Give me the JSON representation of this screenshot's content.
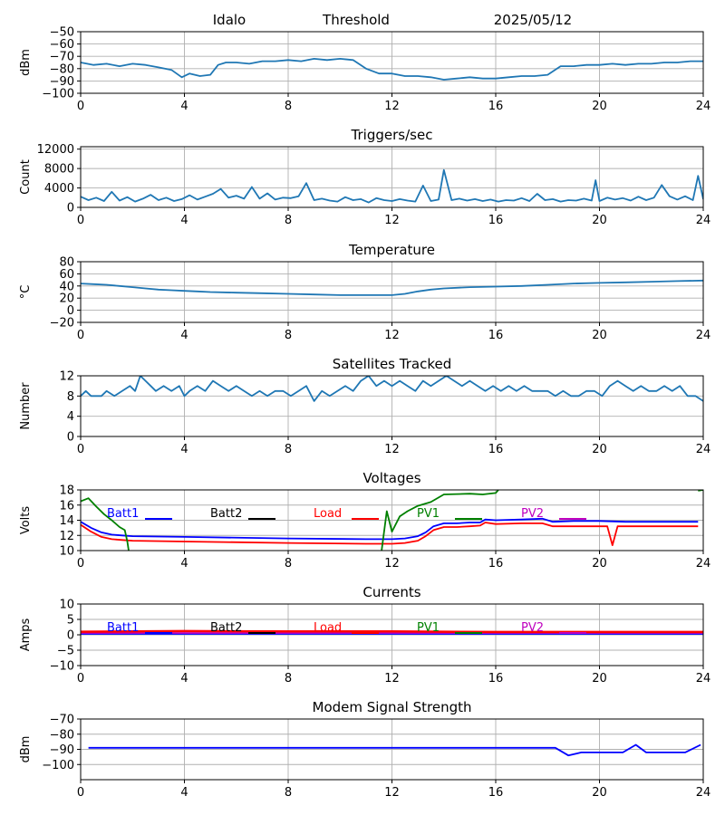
{
  "header": {
    "station": "Idalo",
    "mode": "Threshold",
    "date": "2025/05/12"
  },
  "colors": {
    "series_default": "#1f77b4",
    "batt1": "#0000ff",
    "batt2": "#000000",
    "load": "#ff0000",
    "pv1": "#008000",
    "pv2": "#bf00bf",
    "grid": "#b0b0b0"
  },
  "chart_data": [
    {
      "id": "threshold",
      "type": "line",
      "title": "",
      "ylabel": "dBm",
      "xlim": [
        0,
        24
      ],
      "ylim": [
        -100,
        -50
      ],
      "xticks": [
        0,
        4,
        8,
        12,
        16,
        20,
        24
      ],
      "yticks": [
        -100,
        -90,
        -80,
        -70,
        -60,
        -50
      ],
      "grid": true,
      "series": [
        {
          "color": "#1f77b4",
          "x": [
            0,
            0.5,
            1,
            1.5,
            2,
            2.5,
            3,
            3.5,
            3.9,
            4.2,
            4.6,
            5,
            5.3,
            5.6,
            6,
            6.5,
            7,
            7.5,
            8,
            8.5,
            9,
            9.5,
            10,
            10.5,
            11,
            11.5,
            12,
            12.5,
            13,
            13.5,
            14,
            14.5,
            15,
            15.5,
            16,
            16.5,
            17,
            17.5,
            18,
            18.5,
            19,
            19.5,
            20,
            20.5,
            21,
            21.5,
            22,
            22.5,
            23,
            23.5,
            24
          ],
          "y": [
            -75,
            -77,
            -76,
            -78,
            -76,
            -77,
            -79,
            -81,
            -87,
            -84,
            -86,
            -85,
            -77,
            -75,
            -75,
            -76,
            -74,
            -74,
            -73,
            -74,
            -72,
            -73,
            -72,
            -73,
            -80,
            -84,
            -84,
            -86,
            -86,
            -87,
            -89,
            -88,
            -87,
            -88,
            -88,
            -87,
            -86,
            -86,
            -85,
            -78,
            -78,
            -77,
            -77,
            -76,
            -77,
            -76,
            -76,
            -75,
            -75,
            -74,
            -74
          ]
        }
      ]
    },
    {
      "id": "triggers",
      "type": "line",
      "title": "Triggers/sec",
      "ylabel": "Count",
      "xlim": [
        0,
        24
      ],
      "ylim": [
        0,
        12500
      ],
      "xticks": [
        0,
        4,
        8,
        12,
        16,
        20,
        24
      ],
      "yticks": [
        0,
        4000,
        8000,
        12000
      ],
      "grid": true,
      "series": [
        {
          "color": "#1f77b4",
          "x": [
            0,
            0.3,
            0.6,
            0.9,
            1.2,
            1.5,
            1.8,
            2.1,
            2.4,
            2.7,
            3,
            3.3,
            3.6,
            3.9,
            4.2,
            4.5,
            4.8,
            5.1,
            5.4,
            5.7,
            6,
            6.3,
            6.6,
            6.9,
            7.2,
            7.5,
            7.8,
            8.1,
            8.4,
            8.7,
            9,
            9.3,
            9.6,
            9.9,
            10.2,
            10.5,
            10.8,
            11.1,
            11.4,
            11.7,
            12,
            12.3,
            12.6,
            12.9,
            13.2,
            13.5,
            13.8,
            14,
            14.3,
            14.6,
            14.9,
            15.2,
            15.5,
            15.8,
            16.1,
            16.4,
            16.7,
            17,
            17.3,
            17.6,
            17.9,
            18.2,
            18.5,
            18.8,
            19.1,
            19.4,
            19.7,
            19.85,
            20,
            20.3,
            20.6,
            20.9,
            21.2,
            21.5,
            21.8,
            22.1,
            22.4,
            22.7,
            23,
            23.3,
            23.6,
            23.8,
            24
          ],
          "y": [
            2200,
            1500,
            2000,
            1300,
            3200,
            1400,
            2100,
            1200,
            1800,
            2600,
            1500,
            2000,
            1300,
            1700,
            2500,
            1600,
            2200,
            2800,
            3800,
            2000,
            2400,
            1800,
            4200,
            1800,
            2900,
            1600,
            2000,
            1900,
            2300,
            5000,
            1500,
            1800,
            1400,
            1200,
            2100,
            1500,
            1700,
            1000,
            1900,
            1500,
            1300,
            1700,
            1400,
            1200,
            4500,
            1300,
            1600,
            7700,
            1500,
            1800,
            1400,
            1700,
            1300,
            1600,
            1200,
            1500,
            1400,
            1900,
            1300,
            2800,
            1500,
            1700,
            1200,
            1500,
            1400,
            1800,
            1400,
            5600,
            1300,
            2000,
            1600,
            1900,
            1400,
            2200,
            1500,
            2000,
            4600,
            2300,
            1600,
            2300,
            1500,
            6500,
            1700
          ]
        }
      ]
    },
    {
      "id": "temperature",
      "type": "line",
      "title": "Temperature",
      "ylabel": "°C",
      "xlim": [
        0,
        24
      ],
      "ylim": [
        -20,
        80
      ],
      "xticks": [
        0,
        4,
        8,
        12,
        16,
        20,
        24
      ],
      "yticks": [
        -20,
        0,
        20,
        40,
        60,
        80
      ],
      "grid": true,
      "series": [
        {
          "color": "#1f77b4",
          "x": [
            0,
            0.5,
            1,
            1.5,
            2,
            2.5,
            3,
            3.5,
            4,
            4.5,
            5,
            6,
            7,
            8,
            9,
            10,
            11,
            12,
            12.5,
            13,
            13.5,
            14,
            15,
            16,
            17,
            18,
            19,
            20,
            21,
            22,
            23,
            24
          ],
          "y": [
            44,
            43,
            42,
            40,
            38,
            36,
            34,
            33,
            32,
            31,
            30,
            29,
            28,
            27,
            26,
            25,
            25,
            25,
            27,
            31,
            34,
            36,
            38,
            39,
            40,
            42,
            44,
            45,
            46,
            47,
            48,
            49
          ]
        }
      ]
    },
    {
      "id": "satellites",
      "type": "line",
      "title": "Satellites Tracked",
      "ylabel": "Number",
      "xlim": [
        0,
        24
      ],
      "ylim": [
        0,
        12
      ],
      "xticks": [
        0,
        4,
        8,
        12,
        16,
        20,
        24
      ],
      "yticks": [
        0,
        4,
        8,
        12
      ],
      "grid": true,
      "series": [
        {
          "color": "#1f77b4",
          "x": [
            0,
            0.2,
            0.4,
            0.6,
            0.8,
            1,
            1.3,
            1.6,
            1.9,
            2.1,
            2.3,
            2.5,
            2.7,
            2.9,
            3.2,
            3.5,
            3.8,
            4,
            4.2,
            4.5,
            4.8,
            5.1,
            5.4,
            5.7,
            6,
            6.3,
            6.6,
            6.9,
            7.2,
            7.5,
            7.8,
            8.1,
            8.4,
            8.7,
            9,
            9.3,
            9.6,
            9.9,
            10.2,
            10.5,
            10.8,
            11.1,
            11.4,
            11.7,
            12,
            12.3,
            12.6,
            12.9,
            13.2,
            13.5,
            13.8,
            14.1,
            14.4,
            14.7,
            15,
            15.3,
            15.6,
            15.9,
            16.2,
            16.5,
            16.8,
            17.1,
            17.4,
            17.7,
            18,
            18.3,
            18.6,
            18.9,
            19.2,
            19.5,
            19.8,
            20.1,
            20.4,
            20.7,
            21,
            21.3,
            21.6,
            21.9,
            22.2,
            22.5,
            22.8,
            23.1,
            23.4,
            23.7,
            24
          ],
          "y": [
            8,
            9,
            8,
            8,
            8,
            9,
            8,
            9,
            10,
            9,
            12,
            11,
            10,
            9,
            10,
            9,
            10,
            8,
            9,
            10,
            9,
            11,
            10,
            9,
            10,
            9,
            8,
            9,
            8,
            9,
            9,
            8,
            9,
            10,
            7,
            9,
            8,
            9,
            10,
            9,
            11,
            12,
            10,
            11,
            10,
            11,
            10,
            9,
            11,
            10,
            11,
            12,
            11,
            10,
            11,
            10,
            9,
            10,
            9,
            10,
            9,
            10,
            9,
            9,
            9,
            8,
            9,
            8,
            8,
            9,
            9,
            8,
            10,
            11,
            10,
            9,
            10,
            9,
            9,
            10,
            9,
            10,
            8,
            8,
            7
          ]
        }
      ]
    },
    {
      "id": "voltages",
      "type": "line",
      "title": "Voltages",
      "ylabel": "Volts",
      "xlim": [
        0,
        24
      ],
      "ylim": [
        10,
        18
      ],
      "xticks": [
        0,
        4,
        8,
        12,
        16,
        20,
        24
      ],
      "yticks": [
        10,
        12,
        14,
        16,
        18
      ],
      "grid": true,
      "legend": [
        "Batt1",
        "Batt2",
        "Load",
        "PV1",
        "PV2"
      ],
      "series": [
        {
          "name": "Batt1",
          "color": "#0000ff",
          "x": [
            0,
            0.4,
            0.8,
            1.2,
            1.6,
            2,
            4,
            8,
            11,
            12,
            12.5,
            13,
            13.3,
            13.6,
            14,
            14.5,
            15,
            15.4,
            15.6,
            16,
            17,
            17.8,
            18.2,
            19,
            20,
            21,
            22,
            23,
            23.8
          ],
          "y": [
            13.8,
            13.0,
            12.4,
            12.1,
            12.0,
            11.9,
            11.8,
            11.6,
            11.5,
            11.5,
            11.6,
            11.9,
            12.4,
            13.2,
            13.6,
            13.6,
            13.7,
            13.7,
            14.1,
            14.0,
            14.1,
            14.2,
            13.8,
            13.9,
            13.9,
            13.8,
            13.8,
            13.8,
            13.8
          ]
        },
        {
          "name": "Load",
          "color": "#ff0000",
          "x": [
            0,
            0.4,
            0.8,
            1.2,
            1.6,
            2,
            4,
            8,
            11,
            12,
            12.5,
            13,
            13.3,
            13.6,
            14,
            14.5,
            15,
            15.4,
            15.6,
            16,
            17,
            17.8,
            18.2,
            19,
            20,
            20.3,
            20.5,
            20.7,
            21,
            22,
            23,
            23.8
          ],
          "y": [
            13.4,
            12.5,
            11.8,
            11.5,
            11.4,
            11.3,
            11.2,
            11.0,
            10.9,
            10.9,
            11.0,
            11.3,
            11.9,
            12.7,
            13.1,
            13.1,
            13.2,
            13.3,
            13.7,
            13.5,
            13.6,
            13.6,
            13.2,
            13.2,
            13.2,
            13.2,
            10.7,
            13.2,
            13.2,
            13.2,
            13.2,
            13.2
          ]
        },
        {
          "name": "PV1",
          "color": "#008000",
          "x": [
            0,
            0.3,
            0.6,
            0.9,
            1.2,
            1.5,
            1.7,
            1.8,
            1.85
          ],
          "y": [
            16.5,
            16.9,
            15.8,
            14.8,
            14.0,
            13.1,
            12.7,
            11.2,
            10.0
          ]
        },
        {
          "name": "PV1",
          "color": "#008000",
          "x": [
            11.6,
            11.8,
            12.0,
            12.3,
            12.6,
            13,
            13.5,
            14,
            15,
            15.5,
            16,
            16.1
          ],
          "y": [
            10.0,
            15.2,
            12.5,
            14.5,
            15.2,
            15.9,
            16.4,
            17.4,
            17.5,
            17.4,
            17.6,
            18.0
          ]
        },
        {
          "name": "PV1",
          "color": "#008000",
          "x": [
            23.8,
            24
          ],
          "y": [
            17.9,
            18.0
          ]
        }
      ]
    },
    {
      "id": "currents",
      "type": "line",
      "title": "Currents",
      "ylabel": "Amps",
      "xlim": [
        0,
        24
      ],
      "ylim": [
        -10,
        10
      ],
      "xticks": [
        0,
        4,
        8,
        12,
        16,
        20,
        24
      ],
      "yticks": [
        -10,
        -5,
        0,
        5,
        10
      ],
      "grid": true,
      "legend": [
        "Batt1",
        "Batt2",
        "Load",
        "PV1",
        "PV2"
      ],
      "series": [
        {
          "name": "Batt1",
          "color": "#0000ff",
          "x": [
            0,
            24
          ],
          "y": [
            0.3,
            0.3
          ]
        },
        {
          "name": "PV2",
          "color": "#bf00bf",
          "x": [
            0,
            24
          ],
          "y": [
            0.6,
            0.6
          ]
        },
        {
          "name": "Load",
          "color": "#ff0000",
          "x": [
            0,
            4,
            8,
            12,
            16,
            20,
            24
          ],
          "y": [
            1.0,
            1.2,
            1.1,
            1.1,
            0.9,
            0.9,
            0.9
          ]
        }
      ]
    },
    {
      "id": "modem",
      "type": "line",
      "title": "Modem Signal Strength",
      "ylabel": "dBm",
      "xlim": [
        0,
        24
      ],
      "ylim": [
        -110,
        -70
      ],
      "xticks": [
        0,
        4,
        8,
        12,
        16,
        20,
        24
      ],
      "yticks": [
        -100,
        -90,
        -80,
        -70
      ],
      "grid": true,
      "series": [
        {
          "color": "#0000ff",
          "x": [
            0.3,
            18.3,
            18.8,
            19.3,
            20.9,
            21.4,
            21.8,
            23.3,
            23.9
          ],
          "y": [
            -89,
            -89,
            -94,
            -92,
            -92,
            -87,
            -92,
            -92,
            -87
          ]
        }
      ]
    }
  ]
}
